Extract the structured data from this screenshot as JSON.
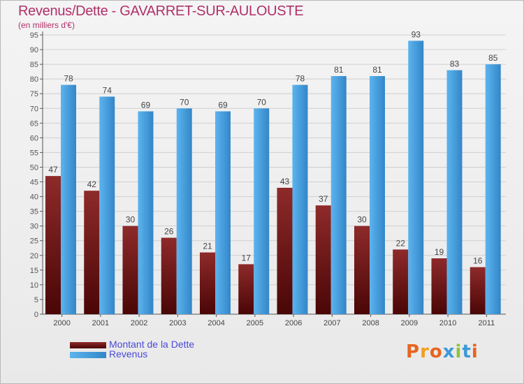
{
  "chart_data": {
    "type": "bar",
    "title": "Revenus/Dette - GAVARRET-SUR-AULOUSTE",
    "subtitle": "(en milliers d'€)",
    "xlabel": "",
    "ylabel": "",
    "ylim": [
      0,
      95
    ],
    "ytick_step": 5,
    "grid": true,
    "legend_position": "bottom-left",
    "categories": [
      "2000",
      "2001",
      "2002",
      "2003",
      "2004",
      "2005",
      "2006",
      "2007",
      "2008",
      "2009",
      "2010",
      "2011"
    ],
    "series": [
      {
        "name": "Montant de la Dette",
        "color": "#7a1414",
        "values": [
          47,
          42,
          30,
          26,
          21,
          17,
          43,
          37,
          30,
          22,
          19,
          16
        ]
      },
      {
        "name": "Revenus",
        "color": "#4ba3e3",
        "values": [
          78,
          74,
          69,
          70,
          69,
          70,
          78,
          81,
          81,
          93,
          83,
          85
        ]
      }
    ]
  },
  "logo": {
    "text": "Proxiti",
    "colors": [
      "#e8641e",
      "#f0a020",
      "#e8641e",
      "#3c9ad8",
      "#8cc43c",
      "#3c9ad8",
      "#e8641e"
    ]
  }
}
